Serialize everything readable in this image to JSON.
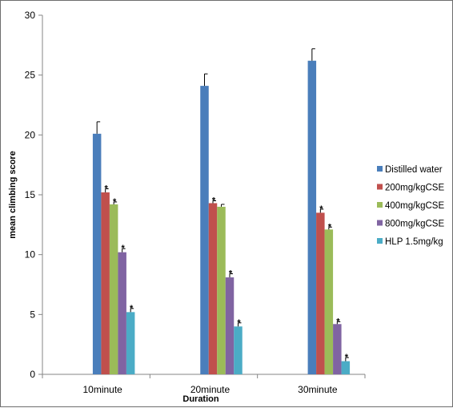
{
  "chart_data": {
    "type": "bar",
    "title": "",
    "xlabel": "Duration",
    "ylabel": "mean climbing score",
    "ylim": [
      0,
      30
    ],
    "yticks": [
      0,
      5,
      10,
      15,
      20,
      25,
      30
    ],
    "categories": [
      "10minute",
      "20minute",
      "30minute"
    ],
    "legend_position": "right",
    "grid": false,
    "significance_marker": "*",
    "series": [
      {
        "name": "Distilled water",
        "color": "#4a7ebb",
        "values": [
          20.1,
          24.1,
          26.2
        ],
        "errors": [
          1.0,
          1.0,
          1.0
        ],
        "significant": [
          false,
          false,
          false
        ]
      },
      {
        "name": "200mg/kgCSE",
        "color": "#c0504d",
        "values": [
          15.2,
          14.3,
          13.5
        ],
        "errors": [
          0.3,
          0.2,
          0.3
        ],
        "significant": [
          true,
          true,
          true
        ]
      },
      {
        "name": "400mg/kgCSE",
        "color": "#9bbb59",
        "values": [
          14.2,
          14.0,
          12.1
        ],
        "errors": [
          0.2,
          0.2,
          0.2
        ],
        "significant": [
          true,
          false,
          true
        ]
      },
      {
        "name": "800mg/kgCSE",
        "color": "#8064a2",
        "values": [
          10.2,
          8.1,
          4.2
        ],
        "errors": [
          0.3,
          0.3,
          0.2
        ],
        "significant": [
          true,
          true,
          true
        ]
      },
      {
        "name": "HLP 1.5mg/kg",
        "color": "#4bacc6",
        "values": [
          5.2,
          4.0,
          1.1
        ],
        "errors": [
          0.3,
          0.3,
          0.3
        ],
        "significant": [
          true,
          true,
          true
        ]
      }
    ]
  }
}
